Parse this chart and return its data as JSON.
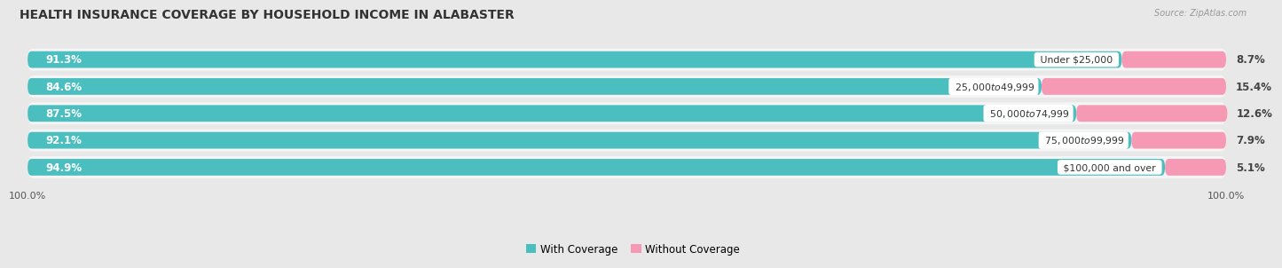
{
  "title": "HEALTH INSURANCE COVERAGE BY HOUSEHOLD INCOME IN ALABASTER",
  "source": "Source: ZipAtlas.com",
  "categories": [
    "Under $25,000",
    "$25,000 to $49,999",
    "$50,000 to $74,999",
    "$75,000 to $99,999",
    "$100,000 and over"
  ],
  "with_coverage": [
    91.3,
    84.6,
    87.5,
    92.1,
    94.9
  ],
  "without_coverage": [
    8.7,
    15.4,
    12.6,
    7.9,
    5.1
  ],
  "color_coverage": "#4BBFC0",
  "color_without": "#F599B4",
  "background_color": "#e8e8e8",
  "bar_bg_color": "#d8d8d8",
  "row_bg_color": "#f5f5f5",
  "title_fontsize": 10,
  "label_fontsize": 8.5,
  "cat_fontsize": 7.8,
  "tick_fontsize": 8,
  "legend_fontsize": 8.5
}
